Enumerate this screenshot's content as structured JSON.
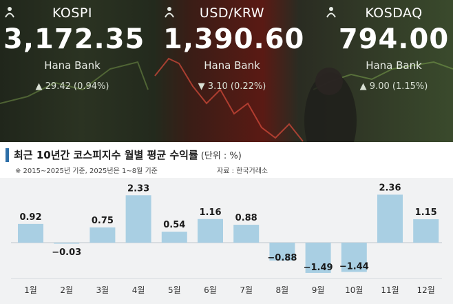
{
  "tickers": [
    {
      "name": "KOSPI",
      "value": "3,172.35",
      "brand": "Hana Bank",
      "change": "▲ 29.42 (0.94%)",
      "direction": "up"
    },
    {
      "name": "USD/KRW",
      "value": "1,390.60",
      "brand": "Hana Bank",
      "change": "▼ 3.10 (0.22%)",
      "direction": "down"
    },
    {
      "name": "KOSDAQ",
      "value": "794.00",
      "brand": "Hana Bank",
      "change": "▲ 9.00 (1.15%)",
      "direction": "up"
    }
  ],
  "colors": {
    "bar": "#a9cfe3",
    "up": "#6ccf7a",
    "down": "#f05b5b",
    "accent": "#2d6fa8"
  },
  "chart_data": {
    "type": "bar",
    "title": "최근 10년간 코스피지수 월별 평균 수익률",
    "unit": "(단위 : %)",
    "note": "※ 2015~2025년 기준, 2025년은 1~8월 기준",
    "source": "자료 : 한국거래소",
    "categories": [
      "1월",
      "2월",
      "3월",
      "4월",
      "5월",
      "6월",
      "7월",
      "8월",
      "9월",
      "10월",
      "11월",
      "12월"
    ],
    "values": [
      0.92,
      -0.03,
      0.75,
      2.33,
      0.54,
      1.16,
      0.88,
      -0.88,
      -1.49,
      -1.44,
      2.36,
      1.15
    ],
    "value_labels": [
      "0.92",
      "−0.03",
      "0.75",
      "2.33",
      "0.54",
      "1.16",
      "0.88",
      "−0.88",
      "−1.49",
      "−1.44",
      "2.36",
      "1.15"
    ],
    "ylim": [
      -1.6,
      2.6
    ],
    "grid": false
  }
}
